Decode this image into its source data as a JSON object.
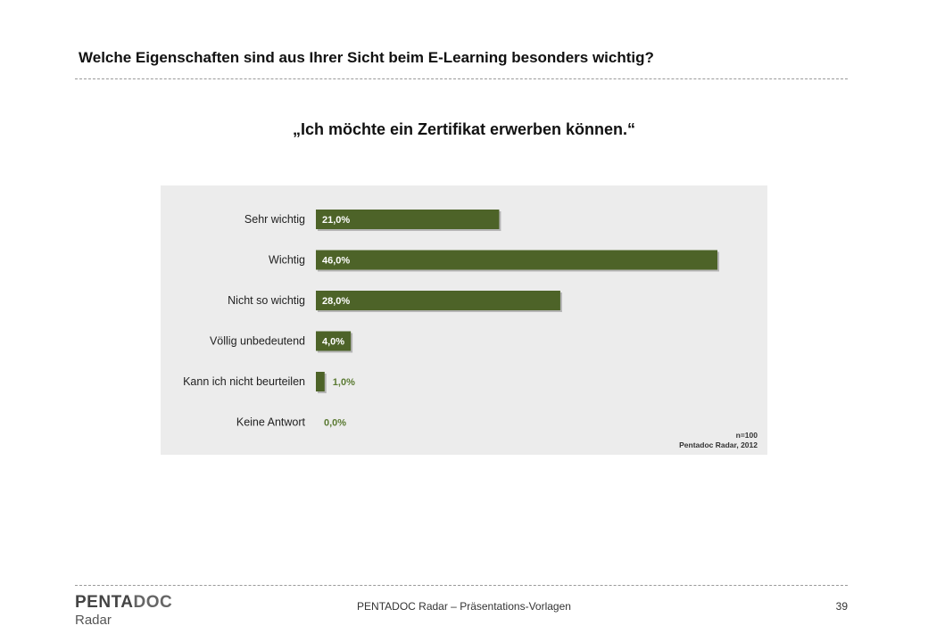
{
  "header": {
    "title": "Welche Eigenschaften sind aus Ihrer Sicht beim E-Learning besonders wichtig?"
  },
  "colors": {
    "bar": "#4d6328",
    "panel": "#ececec",
    "value_outside": "#5a7a32"
  },
  "chart_data": {
    "type": "bar",
    "orientation": "horizontal",
    "title": "„Ich möchte ein Zertifikat erwerben können.“",
    "categories": [
      "Sehr wichtig",
      "Wichtig",
      "Nicht so wichtig",
      "Völlig unbedeutend",
      "Kann ich nicht beurteilen",
      "Keine Antwort"
    ],
    "values": [
      21.0,
      46.0,
      28.0,
      4.0,
      1.0,
      0.0
    ],
    "value_labels": [
      "21,0%",
      "46,0%",
      "28,0%",
      "4,0%",
      "1,0%",
      "0,0%"
    ],
    "xlim": [
      0,
      46
    ],
    "grid": false,
    "legend": "none",
    "annotations": [
      "n=100",
      "Pentadoc Radar, 2012"
    ]
  },
  "footer": {
    "logo_part1": "PENTA",
    "logo_part2": "DOC",
    "logo_sub": "Radar",
    "text": "PENTADOC Radar – Präsentations-Vorlagen",
    "page_number": "39"
  }
}
